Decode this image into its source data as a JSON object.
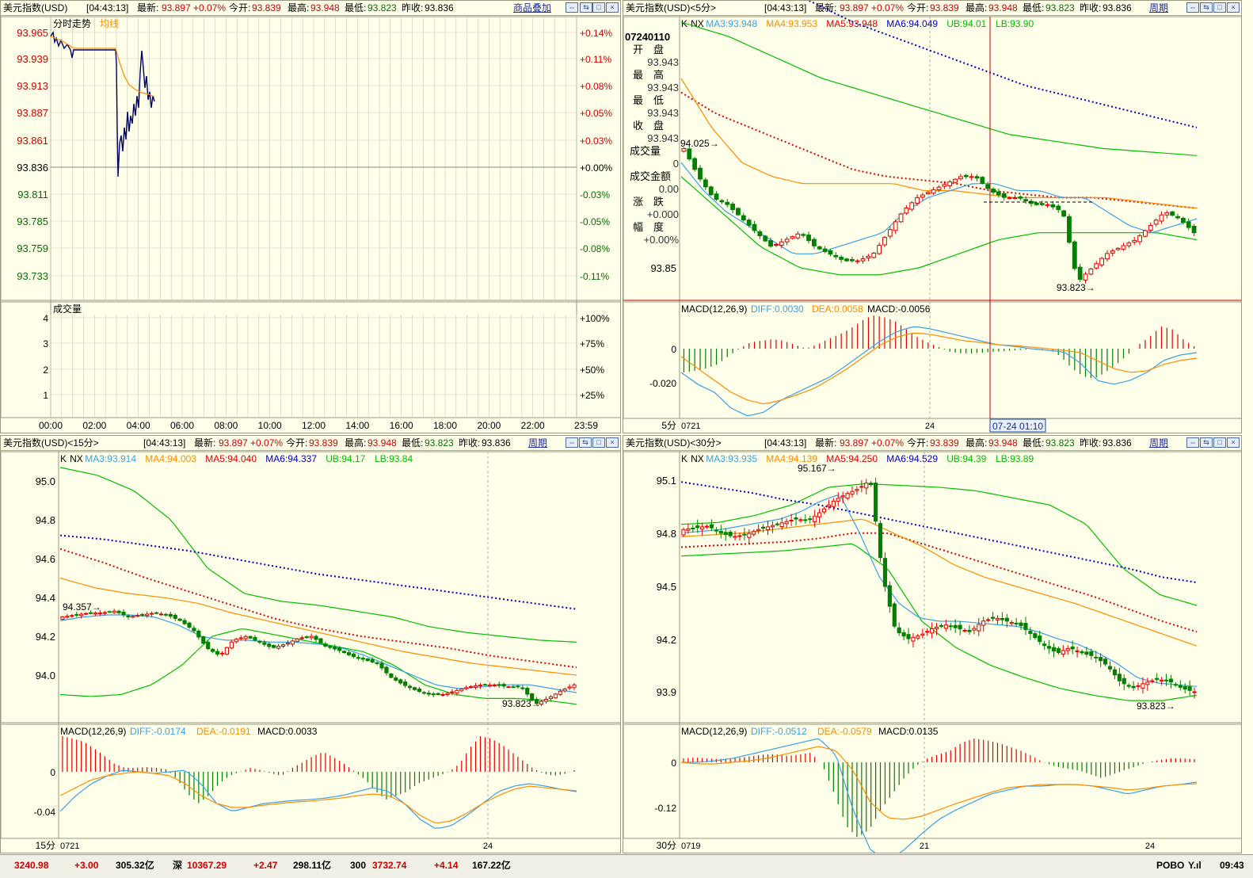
{
  "common": {
    "time": "[04:43:13]",
    "latest_label": "最新:",
    "latest": "93.897",
    "change": "+0.07%",
    "open_label": "今开:",
    "open": "93.839",
    "high_label": "最高:",
    "high": "93.948",
    "low_label": "最低:",
    "low": "93.823",
    "prev_label": "昨收:",
    "prev": "93.836",
    "period_button": "周期"
  },
  "p1": {
    "title": "美元指数(USD)",
    "add_button": "商品叠加",
    "chart_label": "分时走势",
    "avg_label": "均线",
    "volume_label": "成交量",
    "price_ticks": [
      "93.965",
      "93.939",
      "93.913",
      "93.887",
      "93.861",
      "93.836",
      "93.811",
      "93.785",
      "93.759",
      "93.733"
    ],
    "pct_ticks": [
      "+0.14%",
      "+0.11%",
      "+0.08%",
      "+0.05%",
      "+0.03%",
      "+0.00%",
      "-0.03%",
      "-0.05%",
      "-0.08%",
      "-0.11%"
    ],
    "vol_ticks": [
      "4",
      "3",
      "2",
      "1"
    ],
    "vol_pct_ticks": [
      "+100%",
      "+75%",
      "+50%",
      "+25%"
    ],
    "time_ticks": [
      "00:00",
      "02:00",
      "04:00",
      "06:00",
      "08:00",
      "10:00",
      "12:00",
      "14:00",
      "16:00",
      "18:00",
      "20:00",
      "22:00",
      "23:59"
    ],
    "colors": {
      "price_line": "#000060",
      "avg_line": "#ff8c00",
      "up": "#d00000",
      "down": "#007000"
    }
  },
  "p2": {
    "title": "美元指数(USD)<5分>",
    "ind_k": "K",
    "ind_nx": "NX",
    "ma3": "MA3:93.948",
    "ma4": "MA4:93.953",
    "ma5": "MA5:93.948",
    "ma6": "MA6:94.049",
    "ub": "UB:94.01",
    "lb": "LB:93.90",
    "info": {
      "date": "07240110",
      "open_label": "开　盘",
      "open": "93.943",
      "high_label": "最　高",
      "high": "93.943",
      "low_label": "最　低",
      "low": "93.943",
      "close_label": "收　盘",
      "close": "93.943",
      "vol_label": "成交量",
      "vol": "0",
      "amt_label": "成交金额",
      "amt": "0.00",
      "chg_label": "涨　跌",
      "chg": "+0.000",
      "amp_label": "幅　度",
      "amp": "+0.00%"
    },
    "price_tick": "93.85",
    "max_label": "94.025",
    "min_label": "93.823",
    "macd": "MACD(12,26,9)",
    "diff": "DIFF:0.0030",
    "dea": "DEA:0.0058",
    "macd_val": "MACD:-0.0056",
    "macd_ticks": [
      "0",
      "-0.020"
    ],
    "period": "5分",
    "x_start": "0721",
    "x_mid": "24",
    "cursor_time": "07-24 01:10"
  },
  "p3": {
    "title": "美元指数(USD)<15分>",
    "ind_k": "K",
    "ind_nx": "NX",
    "ma3": "MA3:93.914",
    "ma4": "MA4:94.003",
    "ma5": "MA5:94.040",
    "ma6": "MA6:94.337",
    "ub": "UB:94.17",
    "lb": "LB:93.84",
    "price_ticks": [
      "95.0",
      "94.8",
      "94.6",
      "94.4",
      "94.2",
      "94.0"
    ],
    "max_label": "94.357",
    "min_label": "93.823",
    "macd": "MACD(12,26,9)",
    "diff": "DIFF:-0.0174",
    "dea": "DEA:-0.0191",
    "macd_val": "MACD:0.0033",
    "macd_ticks": [
      "0",
      "-0.04"
    ],
    "period": "15分",
    "x_start": "0721",
    "x_mid": "24"
  },
  "p4": {
    "title": "美元指数(USD)<30分>",
    "ind_k": "K",
    "ind_nx": "NX",
    "ma3": "MA3:93.935",
    "ma4": "MA4:94.139",
    "ma5": "MA5:94.250",
    "ma6": "MA6:94.529",
    "ub": "UB:94.39",
    "lb": "LB:93.89",
    "price_ticks": [
      "95.1",
      "94.8",
      "94.5",
      "94.2",
      "93.9"
    ],
    "max_label": "95.167",
    "min_label": "93.823",
    "macd": "MACD(12,26,9)",
    "diff": "DIFF:-0.0512",
    "dea": "DEA:-0.0579",
    "macd_val": "MACD:0.0135",
    "macd_ticks": [
      "0",
      "-0.12"
    ],
    "period": "30分",
    "x_start": "0719",
    "x_mid": "21",
    "x_end": "24"
  },
  "status": {
    "sh_val": "3240.98",
    "sh_chg": "+3.00",
    "sh_amt": "305.32亿",
    "sz_label": "深",
    "sz_val": "10367.29",
    "sz_chg": "+2.47",
    "sz_amt": "298.11亿",
    "c300_label": "300",
    "c300_val": "3732.74",
    "c300_chg": "+4.14",
    "c300_amt": "167.22亿",
    "brand": "POBO",
    "clock": "09:43"
  }
}
